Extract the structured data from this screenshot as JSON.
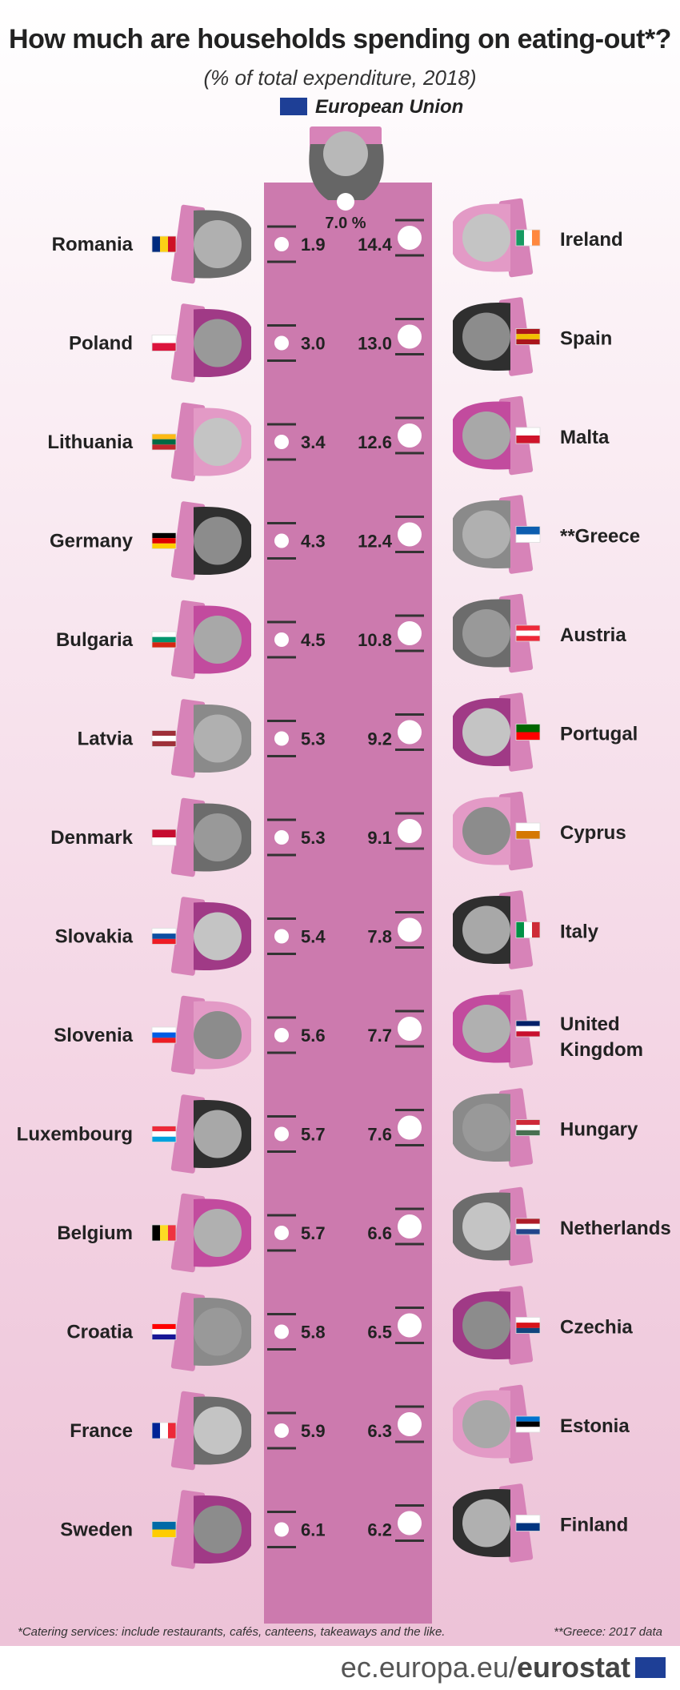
{
  "header": {
    "title": "How much are households spending on eating-out*?",
    "subtitle": "(% of total expenditure, 2018)",
    "eu_label": "European Union"
  },
  "chart_data": {
    "type": "bar",
    "title": "How much are households spending on eating-out*?",
    "subtitle": "(% of total expenditure, 2018)",
    "unit": "% of total expenditure",
    "eu": {
      "name": "European Union",
      "value": 7.0,
      "label": "7.0 %"
    },
    "left_column": [
      {
        "country": "Romania",
        "value": 1.9
      },
      {
        "country": "Poland",
        "value": 3.0
      },
      {
        "country": "Lithuania",
        "value": 3.4
      },
      {
        "country": "Germany",
        "value": 4.3
      },
      {
        "country": "Bulgaria",
        "value": 4.5
      },
      {
        "country": "Latvia",
        "value": 5.3
      },
      {
        "country": "Denmark",
        "value": 5.3
      },
      {
        "country": "Slovakia",
        "value": 5.4
      },
      {
        "country": "Slovenia",
        "value": 5.6
      },
      {
        "country": "Luxembourg",
        "value": 5.7
      },
      {
        "country": "Belgium",
        "value": 5.7
      },
      {
        "country": "Croatia",
        "value": 5.8
      },
      {
        "country": "France",
        "value": 5.9
      },
      {
        "country": "Sweden",
        "value": 6.1
      }
    ],
    "right_column": [
      {
        "country": "Ireland",
        "value": 14.4
      },
      {
        "country": "Spain",
        "value": 13.0
      },
      {
        "country": "Malta",
        "value": 12.6
      },
      {
        "country": "**Greece",
        "value": 12.4
      },
      {
        "country": "Austria",
        "value": 10.8
      },
      {
        "country": "Portugal",
        "value": 9.2
      },
      {
        "country": "Cyprus",
        "value": 9.1
      },
      {
        "country": "Italy",
        "value": 7.8
      },
      {
        "country": "United Kingdom",
        "value": 7.7
      },
      {
        "country": "Hungary",
        "value": 7.6
      },
      {
        "country": "Netherlands",
        "value": 6.6
      },
      {
        "country": "Czechia",
        "value": 6.5
      },
      {
        "country": "Estonia",
        "value": 6.3
      },
      {
        "country": "Finland",
        "value": 6.2
      }
    ]
  },
  "flags_left": [
    [
      "#002b7f",
      "#fcd116",
      "#ce1126"
    ],
    [
      "#ffffff",
      "#dc143c"
    ],
    [
      "#fdb913",
      "#006a44",
      "#c1272d"
    ],
    [
      "#000000",
      "#dd0000",
      "#ffce00"
    ],
    [
      "#ffffff",
      "#00966e",
      "#d62612"
    ],
    [
      "#9e3039",
      "#ffffff",
      "#9e3039"
    ],
    [
      "#c60c30",
      "#ffffff"
    ],
    [
      "#ffffff",
      "#0b4ea2",
      "#ee1c25"
    ],
    [
      "#ffffff",
      "#005ce5",
      "#ed1c24"
    ],
    [
      "#ed2939",
      "#ffffff",
      "#00a1de"
    ],
    [
      "#000000",
      "#fdda24",
      "#ef3340"
    ],
    [
      "#ff0000",
      "#ffffff",
      "#171796"
    ],
    [
      "#002395",
      "#ffffff",
      "#ed2939"
    ],
    [
      "#006aa7",
      "#fecc00"
    ]
  ],
  "flags_right": [
    [
      "#169b62",
      "#ffffff",
      "#ff883e"
    ],
    [
      "#aa151b",
      "#f1bf00",
      "#aa151b"
    ],
    [
      "#ffffff",
      "#cf142b"
    ],
    [
      "#0d5eaf",
      "#ffffff"
    ],
    [
      "#ed2939",
      "#ffffff",
      "#ed2939"
    ],
    [
      "#006600",
      "#ff0000"
    ],
    [
      "#ffffff",
      "#d57800"
    ],
    [
      "#009246",
      "#ffffff",
      "#ce2b37"
    ],
    [
      "#012169",
      "#ffffff",
      "#c8102e"
    ],
    [
      "#ce2939",
      "#ffffff",
      "#477050"
    ],
    [
      "#ae1c28",
      "#ffffff",
      "#21468b"
    ],
    [
      "#ffffff",
      "#d7141a",
      "#11457e"
    ],
    [
      "#0072ce",
      "#000000",
      "#ffffff"
    ],
    [
      "#ffffff",
      "#003580"
    ]
  ],
  "colors": {
    "table": "#cc7aae",
    "mat": "#d783b8",
    "plate": "#ffffff",
    "cutlery": "#333333",
    "heads": [
      "#b0b0b0",
      "#999999",
      "#c4c4c4",
      "#8c8c8c",
      "#a8a8a8"
    ],
    "shirts": [
      "#6c6c6c",
      "#a03a86",
      "#e39ac6",
      "#2f2f2f",
      "#c24b9e",
      "#8a8a8a"
    ]
  },
  "footnotes": {
    "left": "*Catering services: include restaurants, cafés, canteens, takeaways and the like.",
    "right": "**Greece: 2017 data"
  },
  "footer": {
    "site": "ec.europa.eu/",
    "brand": "eurostat"
  }
}
